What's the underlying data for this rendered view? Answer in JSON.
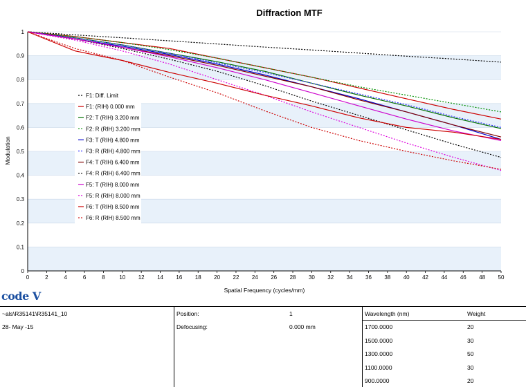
{
  "chart_data": {
    "type": "line",
    "title": "Diffraction MTF",
    "xlabel": "Spatial Frequency (cycles/mm)",
    "ylabel": "Modulation",
    "xlim": [
      0,
      50
    ],
    "ylim": [
      0,
      1
    ],
    "x_ticks": [
      "0",
      "2",
      "4",
      "6",
      "8",
      "10",
      "12",
      "14",
      "16",
      "18",
      "20",
      "22",
      "24",
      "26",
      "28",
      "30",
      "32",
      "34",
      "36",
      "38",
      "40",
      "42",
      "44",
      "46",
      "48",
      "50"
    ],
    "y_ticks": [
      "0",
      "0.1",
      "0.2",
      "0.3",
      "0.4",
      "0.5",
      "0.6",
      "0.7",
      "0.8",
      "0.9",
      "1"
    ],
    "grid": "horizontal alternating bands",
    "legend_position": "left",
    "x": [
      0,
      5,
      10,
      15,
      20,
      25,
      30,
      35,
      40,
      45,
      50
    ],
    "series": [
      {
        "name": "F1: Diff. Limit",
        "color": "#000000",
        "dash": "dotted",
        "values": [
          1.0,
          0.987,
          0.975,
          0.962,
          0.949,
          0.936,
          0.924,
          0.911,
          0.898,
          0.886,
          0.873
        ]
      },
      {
        "name": "F1: (RIH) 0.000 mm",
        "color": "#cc0000",
        "dash": "solid",
        "values": [
          1.0,
          0.98,
          0.955,
          0.93,
          0.89,
          0.85,
          0.81,
          0.765,
          0.72,
          0.675,
          0.635
        ]
      },
      {
        "name": "F2: T (RIH) 3.200 mm",
        "color": "#007000",
        "dash": "solid",
        "values": [
          1.0,
          0.975,
          0.945,
          0.91,
          0.875,
          0.835,
          0.785,
          0.735,
          0.69,
          0.64,
          0.595
        ]
      },
      {
        "name": "F2: R (RIH) 3.200 mm",
        "color": "#009000",
        "dash": "dotted",
        "values": [
          1.0,
          0.98,
          0.955,
          0.925,
          0.89,
          0.85,
          0.81,
          0.77,
          0.735,
          0.7,
          0.665
        ]
      },
      {
        "name": "F3: T (RIH) 4.800 mm",
        "color": "#0000cc",
        "dash": "solid",
        "values": [
          1.0,
          0.97,
          0.94,
          0.905,
          0.865,
          0.82,
          0.77,
          0.72,
          0.665,
          0.61,
          0.55
        ]
      },
      {
        "name": "F3: R (RIH) 4.800 mm",
        "color": "#3333ff",
        "dash": "dotted",
        "values": [
          1.0,
          0.975,
          0.945,
          0.91,
          0.87,
          0.83,
          0.785,
          0.74,
          0.695,
          0.645,
          0.6
        ]
      },
      {
        "name": "F4: T (RIH) 6.400 mm",
        "color": "#800000",
        "dash": "solid",
        "values": [
          1.0,
          0.97,
          0.935,
          0.9,
          0.86,
          0.815,
          0.77,
          0.715,
          0.665,
          0.61,
          0.56
        ]
      },
      {
        "name": "F4: R (RIH) 6.400 mm",
        "color": "#000000",
        "dash": "dotted",
        "values": [
          1.0,
          0.97,
          0.93,
          0.885,
          0.835,
          0.775,
          0.71,
          0.65,
          0.59,
          0.53,
          0.475
        ]
      },
      {
        "name": "F5: T (RIH) 8.000 mm",
        "color": "#cc00cc",
        "dash": "solid",
        "values": [
          1.0,
          0.97,
          0.935,
          0.895,
          0.85,
          0.8,
          0.745,
          0.69,
          0.635,
          0.585,
          0.545
        ]
      },
      {
        "name": "F5: R (RIH) 8.000 mm",
        "color": "#dd00dd",
        "dash": "dotted",
        "values": [
          1.0,
          0.965,
          0.92,
          0.865,
          0.8,
          0.735,
          0.665,
          0.6,
          0.535,
          0.475,
          0.42
        ]
      },
      {
        "name": "F6: T (RIH) 8.500 mm",
        "color": "#cc0000",
        "dash": "solid",
        "values": [
          1.0,
          0.92,
          0.88,
          0.83,
          0.785,
          0.735,
          0.69,
          0.64,
          0.6,
          0.58,
          0.55
        ]
      },
      {
        "name": "F6: R (RIH) 8.500 mm",
        "color": "#cc0000",
        "dash": "dotted",
        "values": [
          1.0,
          0.93,
          0.88,
          0.81,
          0.745,
          0.67,
          0.6,
          0.545,
          0.5,
          0.46,
          0.425
        ]
      }
    ]
  },
  "info": {
    "file": "~als\\R35141\\R35141_10",
    "date": "28- May -15",
    "position_label": "Position:",
    "position_value": "1",
    "defocusing_label": "Defocusing:",
    "defocusing_value": "0.000 mm",
    "wavelength_header": "Wavelength (nm)",
    "weight_header": "Weight",
    "wavelengths": [
      {
        "wl": "1700.0000",
        "weight": "20"
      },
      {
        "wl": "1500.0000",
        "weight": "30"
      },
      {
        "wl": "1300.0000",
        "weight": "50"
      },
      {
        "wl": "1100.0000",
        "weight": "30"
      },
      {
        "wl": "900.0000",
        "weight": "20"
      }
    ]
  },
  "logo_text": "code V"
}
